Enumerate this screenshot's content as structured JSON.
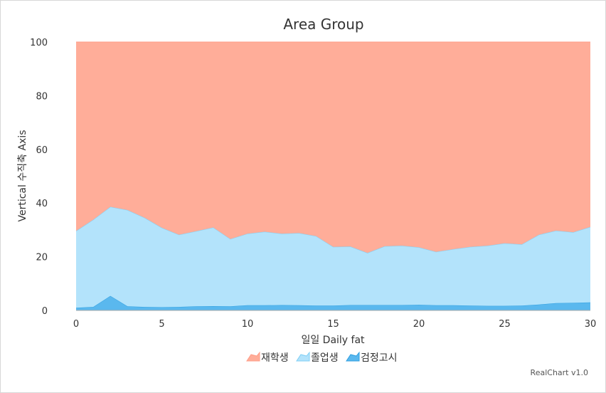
{
  "chart_data": {
    "type": "area",
    "stacking": "percent",
    "title": "Area Group",
    "xlabel": "일일 Daily fat",
    "ylabel": "Vertical 수직축 Axis",
    "xlim": [
      0,
      30
    ],
    "ylim": [
      0,
      100
    ],
    "x_ticks": [
      "0",
      "5",
      "10",
      "15",
      "20",
      "25",
      "30"
    ],
    "y_ticks": [
      "0",
      "20",
      "40",
      "60",
      "80",
      "100"
    ],
    "grid": true,
    "legend_position": "bottom",
    "credit": "RealChart v1.0",
    "x": [
      0,
      1,
      2,
      3,
      4,
      5,
      6,
      7,
      8,
      9,
      10,
      11,
      12,
      13,
      14,
      15,
      16,
      17,
      18,
      19,
      20,
      21,
      22,
      23,
      24,
      25,
      26,
      27,
      28,
      29,
      30
    ],
    "series": [
      {
        "name": "검정고시",
        "color": "#5ab8ee",
        "values": [
          1.0,
          1.3,
          5.4,
          1.5,
          1.3,
          1.2,
          1.3,
          1.5,
          1.6,
          1.5,
          1.9,
          1.9,
          2.0,
          1.9,
          1.8,
          1.8,
          2.0,
          2.0,
          2.0,
          2.0,
          2.1,
          1.9,
          1.9,
          1.8,
          1.7,
          1.7,
          1.8,
          2.2,
          2.7,
          2.8,
          3.0
        ]
      },
      {
        "name": "졸업생",
        "color": "#b3e3fb",
        "values": [
          28.6,
          32.5,
          33.2,
          35.9,
          33.2,
          29.6,
          26.9,
          28.0,
          29.3,
          25.1,
          26.7,
          27.4,
          26.6,
          26.9,
          25.9,
          21.9,
          21.8,
          19.4,
          21.9,
          22.1,
          21.4,
          19.9,
          20.9,
          21.9,
          22.4,
          23.3,
          22.8,
          26.0,
          27.0,
          26.3,
          28.1
        ]
      },
      {
        "name": "재학생",
        "color": "#ffad99",
        "values": [
          70.4,
          66.2,
          61.4,
          62.6,
          65.5,
          69.2,
          71.8,
          70.5,
          69.1,
          73.4,
          71.4,
          70.7,
          71.4,
          71.2,
          72.3,
          76.3,
          76.2,
          78.6,
          76.1,
          75.9,
          76.5,
          78.2,
          77.2,
          76.3,
          75.9,
          75.0,
          75.4,
          71.8,
          70.3,
          70.9,
          68.9
        ]
      }
    ]
  }
}
